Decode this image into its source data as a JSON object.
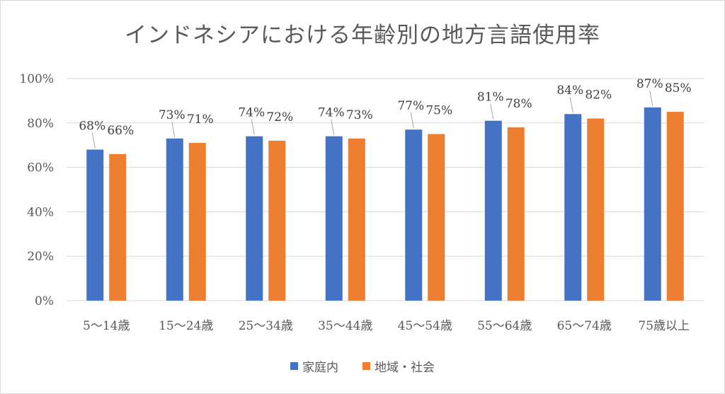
{
  "chart_data": {
    "type": "bar",
    "title": "インドネシアにおける年齢別の地方言語使用率",
    "categories": [
      "5～14歳",
      "15～24歳",
      "25～34歳",
      "35～44歳",
      "45～54歳",
      "55～64歳",
      "65～74歳",
      "75歳以上"
    ],
    "series": [
      {
        "name": "家庭内",
        "color": "#4472c4",
        "values": [
          68,
          73,
          74,
          74,
          77,
          81,
          84,
          87
        ],
        "labels": [
          "68%",
          "73%",
          "74%",
          "74%",
          "77%",
          "81%",
          "84%",
          "87%"
        ]
      },
      {
        "name": "地域・社会",
        "color": "#ed7d31",
        "values": [
          66,
          71,
          72,
          73,
          75,
          78,
          82,
          85
        ],
        "labels": [
          "66%",
          "71%",
          "72%",
          "73%",
          "75%",
          "78%",
          "82%",
          "85%"
        ]
      }
    ],
    "y_ticks": [
      "0%",
      "20%",
      "40%",
      "60%",
      "80%",
      "100%"
    ],
    "ylim": [
      0,
      100
    ],
    "grid": true,
    "legend_position": "bottom"
  }
}
